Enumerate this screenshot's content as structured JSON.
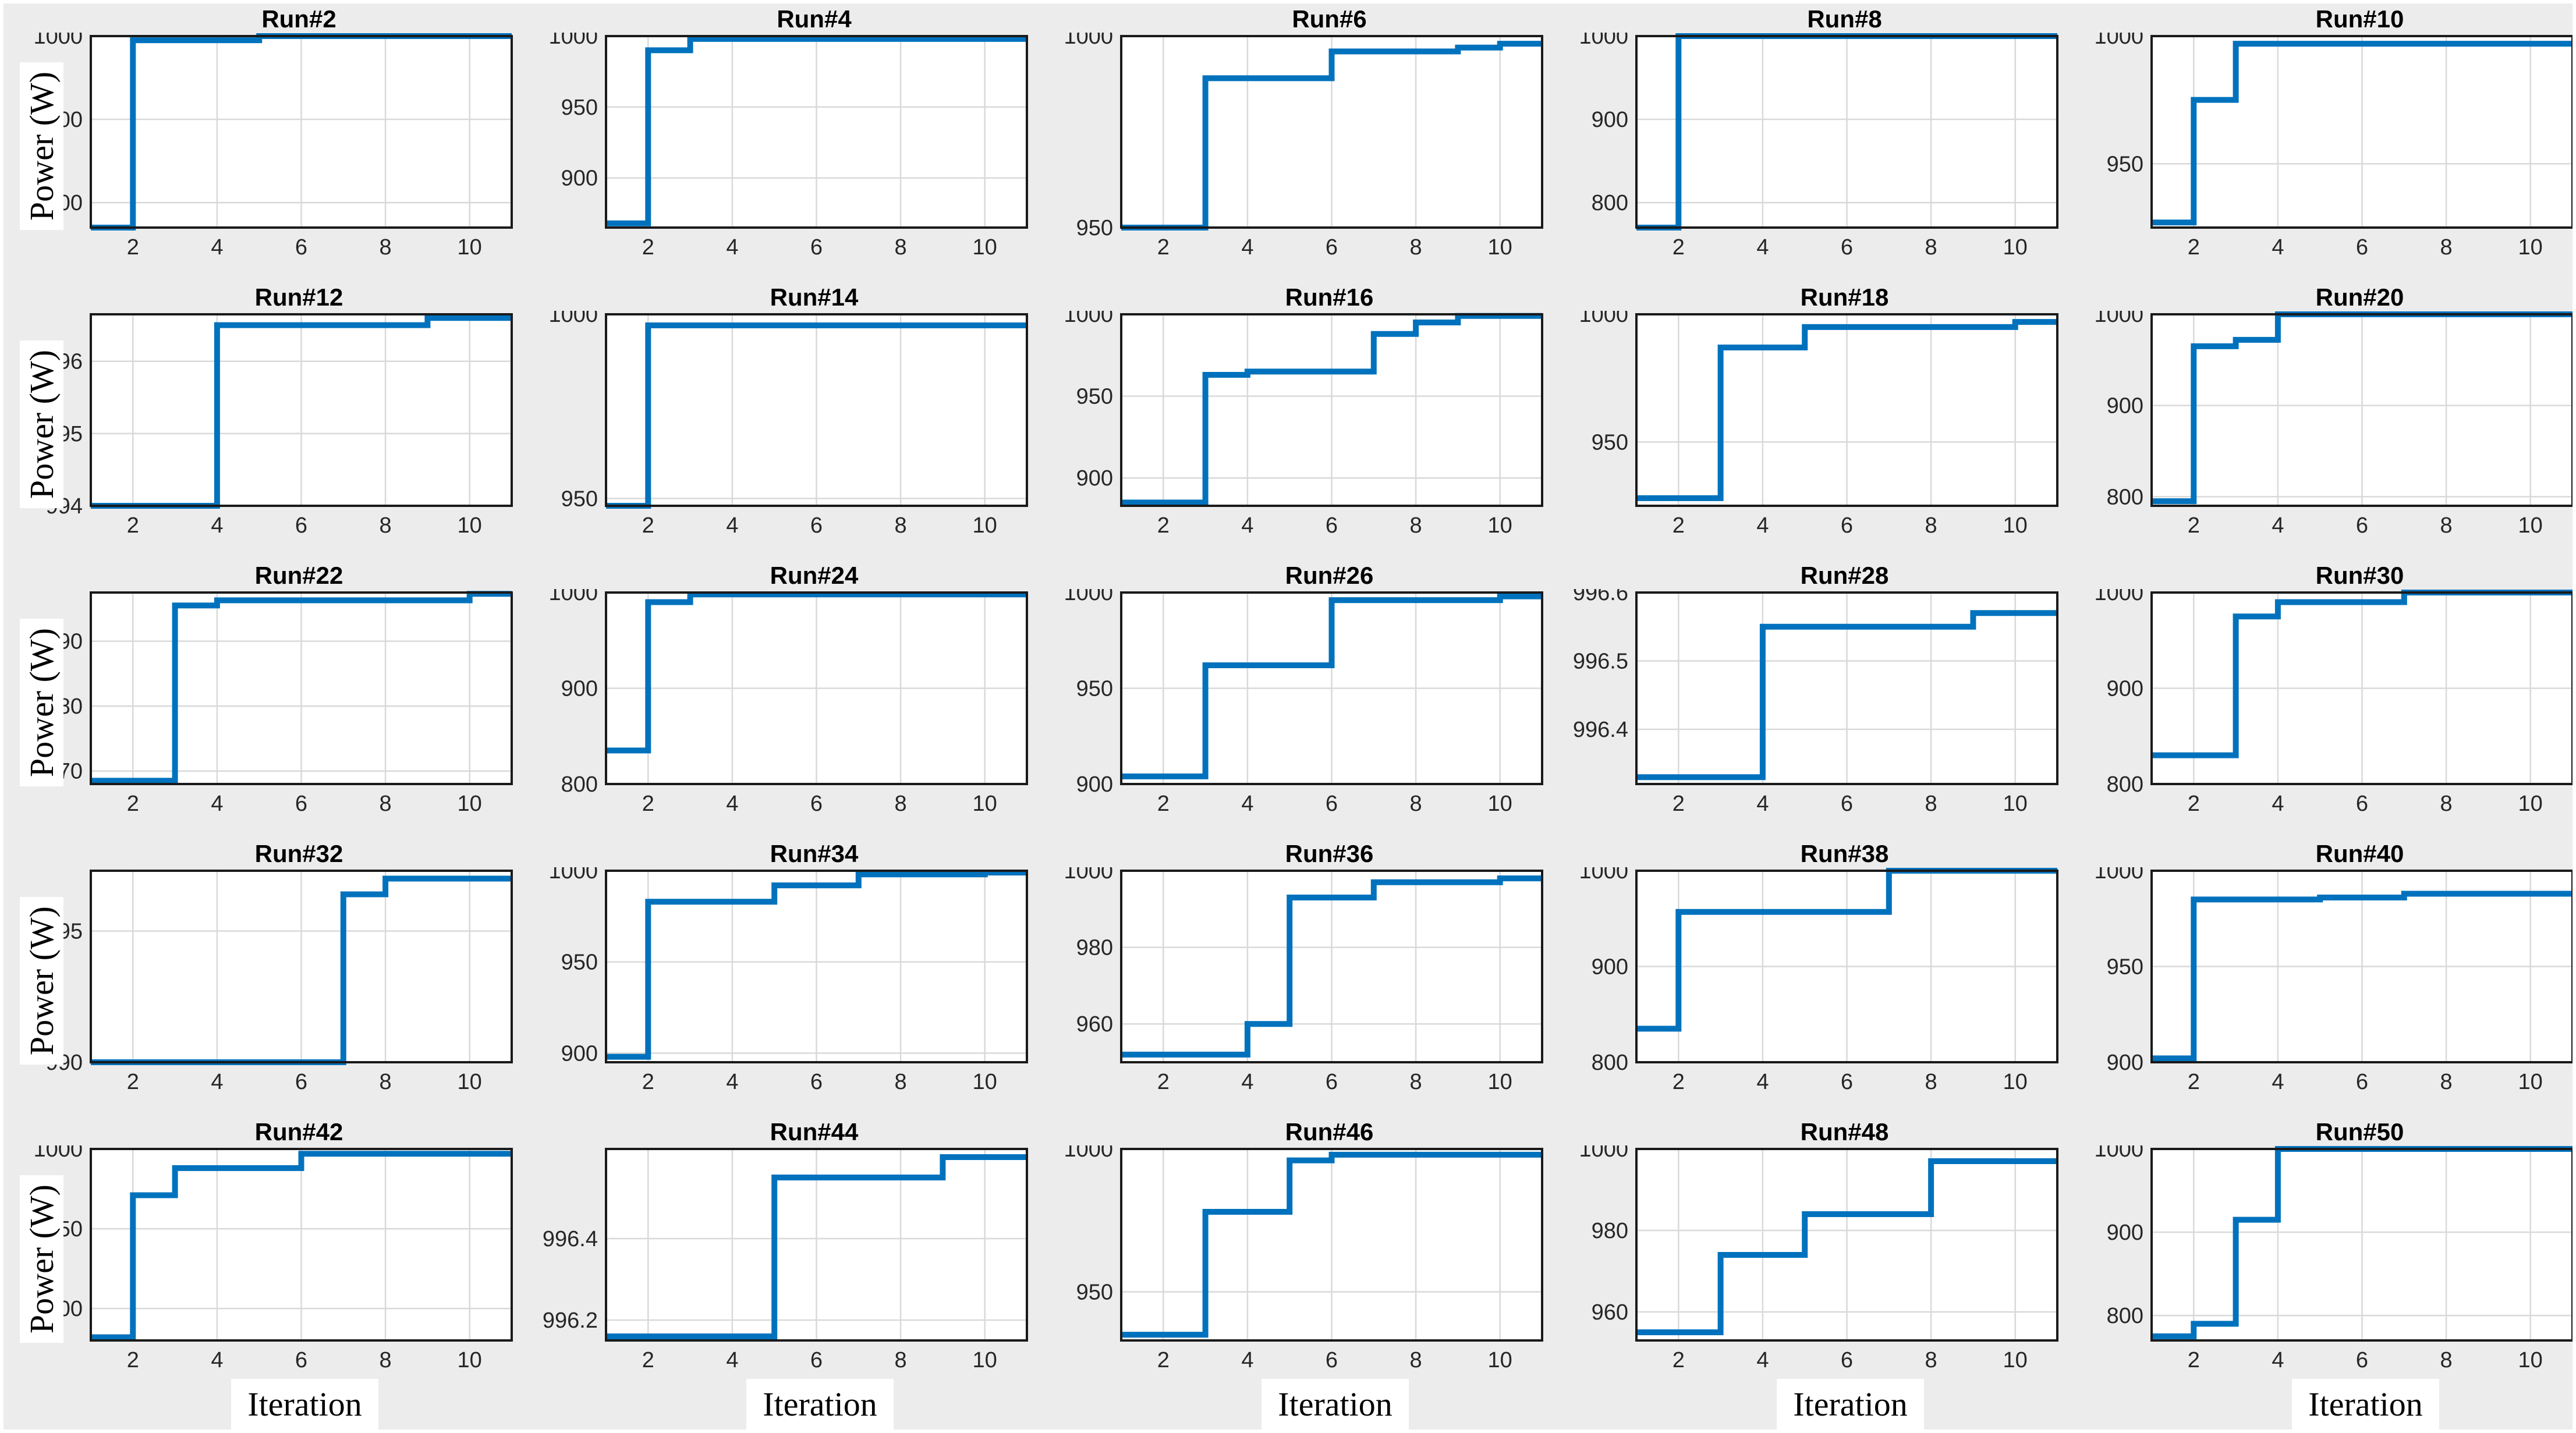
{
  "figure": {
    "ylabel": "Power (W)",
    "xlabel": "Iteration",
    "background_color": "#ececec",
    "axes_color": "#ffffff",
    "box_color": "#1a1a1a",
    "grid_color": "#d9d9d9",
    "tick_color": "#262626",
    "line_color": "#0072BD",
    "grid_on": true,
    "columns": 5,
    "rows": 5
  },
  "chart_data": [
    {
      "type": "line",
      "step": true,
      "title": "Run#2",
      "xlabel": "Iteration",
      "ylabel": "Power (W)",
      "x": [
        1,
        2,
        3,
        4,
        5,
        6,
        7,
        8,
        9,
        10,
        11
      ],
      "y": [
        770,
        995,
        995,
        995,
        1000,
        1000,
        1000,
        1000,
        1000,
        1000,
        1000
      ],
      "xlim": [
        1,
        11
      ],
      "ylim": [
        770,
        1000
      ],
      "xticks": [
        2,
        4,
        6,
        8,
        10
      ],
      "yticks": [
        800,
        900,
        1000
      ]
    },
    {
      "type": "line",
      "step": true,
      "title": "Run#4",
      "xlabel": "Iteration",
      "ylabel": "Power (W)",
      "x": [
        1,
        2,
        3,
        4,
        5,
        6,
        7,
        8,
        9,
        10,
        11
      ],
      "y": [
        868,
        990,
        998,
        998,
        998,
        998,
        998,
        998,
        998,
        998,
        998
      ],
      "xlim": [
        1,
        11
      ],
      "ylim": [
        865,
        1000
      ],
      "xticks": [
        2,
        4,
        6,
        8,
        10
      ],
      "yticks": [
        900,
        950,
        1000
      ]
    },
    {
      "type": "line",
      "step": true,
      "title": "Run#6",
      "xlabel": "Iteration",
      "ylabel": "Power (W)",
      "x": [
        1,
        2,
        3,
        4,
        5,
        6,
        7,
        8,
        9,
        10,
        11
      ],
      "y": [
        950,
        950,
        989,
        989,
        989,
        996,
        996,
        996,
        997,
        998,
        998
      ],
      "xlim": [
        1,
        11
      ],
      "ylim": [
        950,
        1000
      ],
      "xticks": [
        2,
        4,
        6,
        8,
        10
      ],
      "yticks": [
        950,
        1000
      ]
    },
    {
      "type": "line",
      "step": true,
      "title": "Run#8",
      "xlabel": "Iteration",
      "ylabel": "Power (W)",
      "x": [
        1,
        2,
        3,
        4,
        5,
        6,
        7,
        8,
        9,
        10,
        11
      ],
      "y": [
        770,
        1000,
        1000,
        1000,
        1000,
        1000,
        1000,
        1000,
        1000,
        1000,
        1000
      ],
      "xlim": [
        1,
        11
      ],
      "ylim": [
        770,
        1000
      ],
      "xticks": [
        2,
        4,
        6,
        8,
        10
      ],
      "yticks": [
        800,
        900,
        1000
      ]
    },
    {
      "type": "line",
      "step": true,
      "title": "Run#10",
      "xlabel": "Iteration",
      "ylabel": "Power (W)",
      "x": [
        1,
        2,
        3,
        4,
        5,
        6,
        7,
        8,
        9,
        10,
        11
      ],
      "y": [
        927,
        975,
        997,
        997,
        997,
        997,
        997,
        997,
        997,
        997,
        997
      ],
      "xlim": [
        1,
        11
      ],
      "ylim": [
        925,
        1000
      ],
      "xticks": [
        2,
        4,
        6,
        8,
        10
      ],
      "yticks": [
        950,
        1000
      ]
    },
    {
      "type": "line",
      "step": true,
      "title": "Run#12",
      "xlabel": "Iteration",
      "ylabel": "Power (W)",
      "x": [
        1,
        2,
        3,
        4,
        5,
        6,
        7,
        8,
        9,
        10,
        11
      ],
      "y": [
        994,
        994,
        994,
        996.5,
        996.5,
        996.5,
        996.5,
        996.5,
        996.6,
        996.6,
        996.6
      ],
      "xlim": [
        1,
        11
      ],
      "ylim": [
        994,
        996.65
      ],
      "xticks": [
        2,
        4,
        6,
        8,
        10
      ],
      "yticks": [
        994,
        995,
        996
      ]
    },
    {
      "type": "line",
      "step": true,
      "title": "Run#14",
      "xlabel": "Iteration",
      "ylabel": "Power (W)",
      "x": [
        1,
        2,
        3,
        4,
        5,
        6,
        7,
        8,
        9,
        10,
        11
      ],
      "y": [
        948,
        997,
        997,
        997,
        997,
        997,
        997,
        997,
        997,
        997,
        997
      ],
      "xlim": [
        1,
        11
      ],
      "ylim": [
        948,
        1000
      ],
      "xticks": [
        2,
        4,
        6,
        8,
        10
      ],
      "yticks": [
        950,
        1000
      ]
    },
    {
      "type": "line",
      "step": true,
      "title": "Run#16",
      "xlabel": "Iteration",
      "ylabel": "Power (W)",
      "x": [
        1,
        2,
        3,
        4,
        5,
        6,
        7,
        8,
        9,
        10,
        11
      ],
      "y": [
        885,
        885,
        963,
        965,
        965,
        965,
        988,
        995,
        999,
        999,
        999
      ],
      "xlim": [
        1,
        11
      ],
      "ylim": [
        883,
        1000
      ],
      "xticks": [
        2,
        4,
        6,
        8,
        10
      ],
      "yticks": [
        900,
        950,
        1000
      ]
    },
    {
      "type": "line",
      "step": true,
      "title": "Run#18",
      "xlabel": "Iteration",
      "ylabel": "Power (W)",
      "x": [
        1,
        2,
        3,
        4,
        5,
        6,
        7,
        8,
        9,
        10,
        11
      ],
      "y": [
        928,
        928,
        987,
        987,
        995,
        995,
        995,
        995,
        995,
        997,
        997
      ],
      "xlim": [
        1,
        11
      ],
      "ylim": [
        925,
        1000
      ],
      "xticks": [
        2,
        4,
        6,
        8,
        10
      ],
      "yticks": [
        950,
        1000
      ]
    },
    {
      "type": "line",
      "step": true,
      "title": "Run#20",
      "xlabel": "Iteration",
      "ylabel": "Power (W)",
      "x": [
        1,
        2,
        3,
        4,
        5,
        6,
        7,
        8,
        9,
        10,
        11
      ],
      "y": [
        795,
        965,
        972,
        1000,
        1000,
        1000,
        1000,
        1000,
        1000,
        1000,
        1000
      ],
      "xlim": [
        1,
        11
      ],
      "ylim": [
        790,
        1000
      ],
      "xticks": [
        2,
        4,
        6,
        8,
        10
      ],
      "yticks": [
        800,
        900,
        1000
      ]
    },
    {
      "type": "line",
      "step": true,
      "title": "Run#22",
      "xlabel": "Iteration",
      "ylabel": "Power (W)",
      "x": [
        1,
        2,
        3,
        4,
        5,
        6,
        7,
        8,
        9,
        10,
        11
      ],
      "y": [
        968.5,
        968.5,
        995.5,
        996.3,
        996.3,
        996.3,
        996.3,
        996.3,
        996.3,
        997.3,
        997.3
      ],
      "xlim": [
        1,
        11
      ],
      "ylim": [
        968,
        997.5
      ],
      "xticks": [
        2,
        4,
        6,
        8,
        10
      ],
      "yticks": [
        970,
        980,
        990
      ]
    },
    {
      "type": "line",
      "step": true,
      "title": "Run#24",
      "xlabel": "Iteration",
      "ylabel": "Power (W)",
      "x": [
        1,
        2,
        3,
        4,
        5,
        6,
        7,
        8,
        9,
        10,
        11
      ],
      "y": [
        835,
        990,
        998,
        998,
        998,
        998,
        998,
        998,
        998,
        998,
        998
      ],
      "xlim": [
        1,
        11
      ],
      "ylim": [
        800,
        1000
      ],
      "xticks": [
        2,
        4,
        6,
        8,
        10
      ],
      "yticks": [
        800,
        900,
        1000
      ]
    },
    {
      "type": "line",
      "step": true,
      "title": "Run#26",
      "xlabel": "Iteration",
      "ylabel": "Power (W)",
      "x": [
        1,
        2,
        3,
        4,
        5,
        6,
        7,
        8,
        9,
        10,
        11
      ],
      "y": [
        904,
        904,
        962,
        962,
        962,
        996,
        996,
        996,
        996,
        998,
        998
      ],
      "xlim": [
        1,
        11
      ],
      "ylim": [
        900,
        1000
      ],
      "xticks": [
        2,
        4,
        6,
        8,
        10
      ],
      "yticks": [
        900,
        950,
        1000
      ]
    },
    {
      "type": "line",
      "step": true,
      "title": "Run#28",
      "xlabel": "Iteration",
      "ylabel": "Power (W)",
      "x": [
        1,
        2,
        3,
        4,
        5,
        6,
        7,
        8,
        9,
        10,
        11
      ],
      "y": [
        996.33,
        996.33,
        996.33,
        996.55,
        996.55,
        996.55,
        996.55,
        996.55,
        996.57,
        996.57,
        996.57
      ],
      "xlim": [
        1,
        11
      ],
      "ylim": [
        996.32,
        996.6
      ],
      "xticks": [
        2,
        4,
        6,
        8,
        10
      ],
      "yticks": [
        996.4,
        996.5,
        996.6
      ]
    },
    {
      "type": "line",
      "step": true,
      "title": "Run#30",
      "xlabel": "Iteration",
      "ylabel": "Power (W)",
      "x": [
        1,
        2,
        3,
        4,
        5,
        6,
        7,
        8,
        9,
        10,
        11
      ],
      "y": [
        830,
        830,
        975,
        990,
        990,
        990,
        1000,
        1000,
        1000,
        1000,
        1000
      ],
      "xlim": [
        1,
        11
      ],
      "ylim": [
        800,
        1000
      ],
      "xticks": [
        2,
        4,
        6,
        8,
        10
      ],
      "yticks": [
        800,
        900,
        1000
      ]
    },
    {
      "type": "line",
      "step": true,
      "title": "Run#32",
      "xlabel": "Iteration",
      "ylabel": "Power (W)",
      "x": [
        1,
        2,
        3,
        4,
        5,
        6,
        7,
        8,
        9,
        10,
        11
      ],
      "y": [
        990,
        990,
        990,
        990,
        990,
        990,
        996.4,
        997,
        997,
        997,
        997
      ],
      "xlim": [
        1,
        11
      ],
      "ylim": [
        990,
        997.3
      ],
      "xticks": [
        2,
        4,
        6,
        8,
        10
      ],
      "yticks": [
        990,
        995
      ]
    },
    {
      "type": "line",
      "step": true,
      "title": "Run#34",
      "xlabel": "Iteration",
      "ylabel": "Power (W)",
      "x": [
        1,
        2,
        3,
        4,
        5,
        6,
        7,
        8,
        9,
        10,
        11
      ],
      "y": [
        898,
        983,
        983,
        983,
        992,
        992,
        998,
        998,
        998,
        999,
        999
      ],
      "xlim": [
        1,
        11
      ],
      "ylim": [
        895,
        1000
      ],
      "xticks": [
        2,
        4,
        6,
        8,
        10
      ],
      "yticks": [
        900,
        950,
        1000
      ]
    },
    {
      "type": "line",
      "step": true,
      "title": "Run#36",
      "xlabel": "Iteration",
      "ylabel": "Power (W)",
      "x": [
        1,
        2,
        3,
        4,
        5,
        6,
        7,
        8,
        9,
        10,
        11
      ],
      "y": [
        952,
        952,
        952,
        960,
        993,
        993,
        997,
        997,
        997,
        998,
        998
      ],
      "xlim": [
        1,
        11
      ],
      "ylim": [
        950,
        1000
      ],
      "xticks": [
        2,
        4,
        6,
        8,
        10
      ],
      "yticks": [
        960,
        980,
        1000
      ]
    },
    {
      "type": "line",
      "step": true,
      "title": "Run#38",
      "xlabel": "Iteration",
      "ylabel": "Power (W)",
      "x": [
        1,
        2,
        3,
        4,
        5,
        6,
        7,
        8,
        9,
        10,
        11
      ],
      "y": [
        835,
        957,
        957,
        957,
        957,
        957,
        1000,
        1000,
        1000,
        1000,
        1000
      ],
      "xlim": [
        1,
        11
      ],
      "ylim": [
        800,
        1000
      ],
      "xticks": [
        2,
        4,
        6,
        8,
        10
      ],
      "yticks": [
        800,
        900,
        1000
      ]
    },
    {
      "type": "line",
      "step": true,
      "title": "Run#40",
      "xlabel": "Iteration",
      "ylabel": "Power (W)",
      "x": [
        1,
        2,
        3,
        4,
        5,
        6,
        7,
        8,
        9,
        10,
        11
      ],
      "y": [
        902,
        985,
        985,
        985,
        986,
        986,
        988,
        988,
        988,
        988,
        989
      ],
      "xlim": [
        1,
        11
      ],
      "ylim": [
        900,
        1000
      ],
      "xticks": [
        2,
        4,
        6,
        8,
        10
      ],
      "yticks": [
        900,
        950,
        1000
      ]
    },
    {
      "type": "line",
      "step": true,
      "title": "Run#42",
      "xlabel": "Iteration",
      "ylabel": "Power (W)",
      "x": [
        1,
        2,
        3,
        4,
        5,
        6,
        7,
        8,
        9,
        10,
        11
      ],
      "y": [
        882,
        971,
        988,
        988,
        988,
        997,
        997,
        997,
        997,
        997,
        997
      ],
      "xlim": [
        1,
        11
      ],
      "ylim": [
        880,
        1000
      ],
      "xticks": [
        2,
        4,
        6,
        8,
        10
      ],
      "yticks": [
        900,
        950,
        1000
      ]
    },
    {
      "type": "line",
      "step": true,
      "title": "Run#44",
      "xlabel": "Iteration",
      "ylabel": "Power (W)",
      "x": [
        1,
        2,
        3,
        4,
        5,
        6,
        7,
        8,
        9,
        10,
        11
      ],
      "y": [
        996.16,
        996.16,
        996.16,
        996.16,
        996.55,
        996.55,
        996.55,
        996.55,
        996.6,
        996.6,
        996.6
      ],
      "xlim": [
        1,
        11
      ],
      "ylim": [
        996.15,
        996.62
      ],
      "xticks": [
        2,
        4,
        6,
        8,
        10
      ],
      "yticks": [
        996.2,
        996.4
      ]
    },
    {
      "type": "line",
      "step": true,
      "title": "Run#46",
      "xlabel": "Iteration",
      "ylabel": "Power (W)",
      "x": [
        1,
        2,
        3,
        4,
        5,
        6,
        7,
        8,
        9,
        10,
        11
      ],
      "y": [
        935,
        935,
        978,
        978,
        996,
        998,
        998,
        998,
        998,
        998,
        998
      ],
      "xlim": [
        1,
        11
      ],
      "ylim": [
        933,
        1000
      ],
      "xticks": [
        2,
        4,
        6,
        8,
        10
      ],
      "yticks": [
        950,
        1000
      ]
    },
    {
      "type": "line",
      "step": true,
      "title": "Run#48",
      "xlabel": "Iteration",
      "ylabel": "Power (W)",
      "x": [
        1,
        2,
        3,
        4,
        5,
        6,
        7,
        8,
        9,
        10,
        11
      ],
      "y": [
        955,
        955,
        974,
        974,
        984,
        984,
        984,
        997,
        997,
        997,
        997
      ],
      "xlim": [
        1,
        11
      ],
      "ylim": [
        953,
        1000
      ],
      "xticks": [
        2,
        4,
        6,
        8,
        10
      ],
      "yticks": [
        960,
        980,
        1000
      ]
    },
    {
      "type": "line",
      "step": true,
      "title": "Run#50",
      "xlabel": "Iteration",
      "ylabel": "Power (W)",
      "x": [
        1,
        2,
        3,
        4,
        5,
        6,
        7,
        8,
        9,
        10,
        11
      ],
      "y": [
        775,
        790,
        915,
        1000,
        1000,
        1000,
        1000,
        1000,
        1000,
        1000,
        1000
      ],
      "xlim": [
        1,
        11
      ],
      "ylim": [
        770,
        1000
      ],
      "xticks": [
        2,
        4,
        6,
        8,
        10
      ],
      "yticks": [
        800,
        900,
        1000
      ]
    }
  ]
}
